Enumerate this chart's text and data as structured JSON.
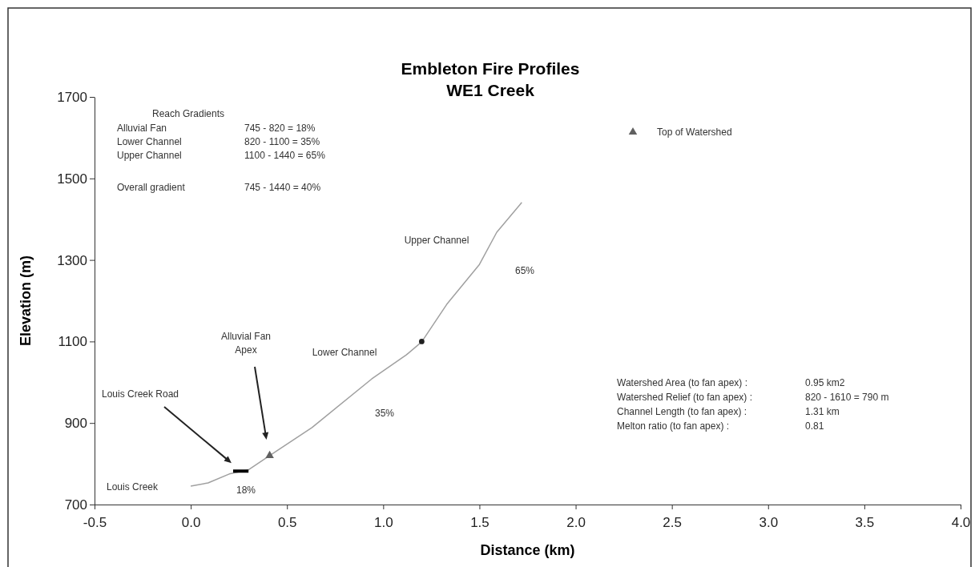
{
  "chart_data": {
    "type": "line",
    "title": "Embleton Fire Profiles",
    "subtitle": "WE1 Creek",
    "xlabel": "Distance (km)",
    "ylabel": "Elevation (m)",
    "xlim": [
      -0.5,
      4.0
    ],
    "xticks": [
      {
        "value": -0.5,
        "label": "-0.5"
      },
      {
        "value": 0,
        "label": "0.0"
      },
      {
        "value": 0.5,
        "label": "0.5"
      },
      {
        "value": 1,
        "label": "1.0"
      },
      {
        "value": 1.5,
        "label": "1.5"
      },
      {
        "value": 2,
        "label": "2.0"
      },
      {
        "value": 2.5,
        "label": "2.5"
      },
      {
        "value": 3,
        "label": "3.0"
      },
      {
        "value": 3.5,
        "label": "3.5"
      },
      {
        "value": 4,
        "label": "4.0"
      }
    ],
    "ylim": [
      700,
      1700
    ],
    "yticks": [
      700,
      900,
      1100,
      1300,
      1500,
      1700
    ],
    "grid": false,
    "legend": "top right",
    "series": [
      {
        "color": "#a0a0a0",
        "marker": "none",
        "x": [
          0,
          0.09,
          0.2,
          0.3,
          0.41,
          0.63,
          0.94,
          1.12,
          1.2,
          1.33,
          1.5,
          1.59,
          1.72
        ],
        "values": [
          745,
          753,
          775,
          785,
          820,
          889,
          1008,
          1067,
          1099,
          1191,
          1289,
          1368,
          1441
        ]
      },
      {
        "color": "#000000",
        "marker": "none",
        "x": [
          0.22,
          0.3
        ],
        "values": [
          782,
          782
        ]
      },
      {
        "type": "scatter",
        "name": "Top of Watershed",
        "color": "#606060",
        "marker": "triangle",
        "x": [
          0.41
        ],
        "values": [
          820
        ]
      },
      {
        "type": "scatter",
        "color": "#202020",
        "marker": "circle",
        "x": [
          1.2
        ],
        "values": [
          1100
        ]
      }
    ],
    "annotations": [
      "Louis Creek Road",
      "Alluvial Fan Apex",
      "Louis Creek",
      "18%",
      "Lower Channel",
      "35%",
      "Upper Channel",
      "65%",
      "Reach Gradients",
      "Alluvial Fan",
      "745  -  820 =  18%",
      "Lower Channel",
      "820  - 1100 = 35%",
      "Upper Channel",
      "1100 - 1440 = 65%",
      "Overall gradient",
      "745  - 1440 =  40%",
      "Watershed Area (to fan apex) :",
      "0.95 km2",
      "Watershed Relief (to fan apex) :",
      "820 - 1610 = 790 m",
      "Channel Length (to fan apex) :",
      "1.31 km",
      "Melton ratio (to fan apex) :",
      "0.81"
    ]
  }
}
